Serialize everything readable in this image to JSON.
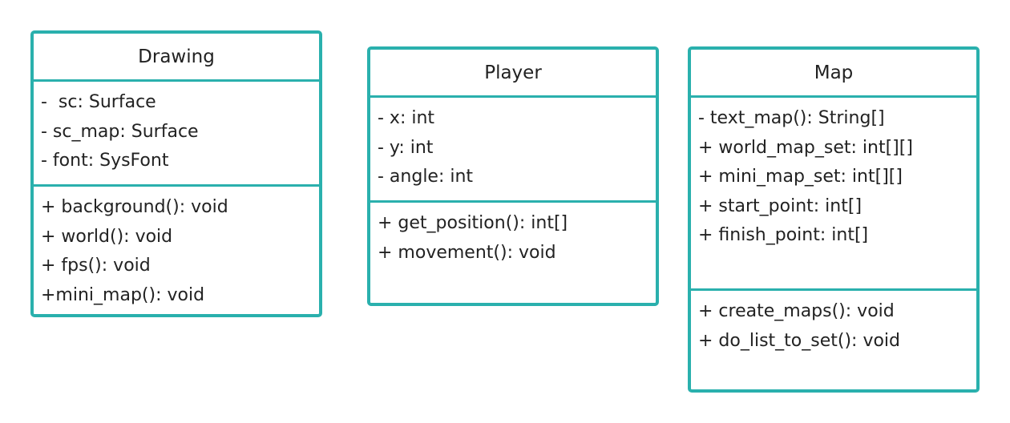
{
  "classes": [
    {
      "name": "Drawing",
      "attributes": [
        "-  sc: Surface",
        "- sc_map: Surface",
        "- font: SysFont"
      ],
      "operations": [
        "+ background(): void",
        "+ world(): void",
        "+ fps(): void",
        "+mini_map(): void"
      ]
    },
    {
      "name": "Player",
      "attributes": [
        "- x: int",
        "- y: int",
        "- angle: int"
      ],
      "operations": [
        "+ get_position(): int[]",
        "+ movement(): void"
      ]
    },
    {
      "name": "Map",
      "attributes": [
        "- text_map(): String[]",
        "+ world_map_set: int[][]",
        "+ mini_map_set: int[][]",
        "+ start_point: int[]",
        "+ finish_point: int[]"
      ],
      "operations": [
        "+ create_maps(): void",
        "+ do_list_to_set(): void"
      ]
    }
  ],
  "colors": {
    "border": "#2ab0ad",
    "text": "#222222",
    "background": "#ffffff"
  }
}
